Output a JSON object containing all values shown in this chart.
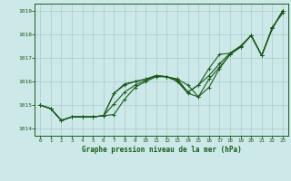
{
  "xlabel": "Graphe pression niveau de la mer (hPa)",
  "bg_color": "#cce8e8",
  "line_color": "#1a5c1a",
  "grid_color": "#aacccc",
  "ylim": [
    1013.7,
    1019.3
  ],
  "xlim": [
    -0.5,
    23.5
  ],
  "yticks": [
    1014,
    1015,
    1016,
    1017,
    1018,
    1019
  ],
  "xticks": [
    0,
    1,
    2,
    3,
    4,
    5,
    6,
    7,
    8,
    9,
    10,
    11,
    12,
    13,
    14,
    15,
    16,
    17,
    18,
    19,
    20,
    21,
    22,
    23
  ],
  "line1": [
    1015.0,
    1014.85,
    1014.35,
    1014.5,
    1014.5,
    1014.5,
    1014.55,
    1014.6,
    1015.25,
    1015.75,
    1016.0,
    1016.2,
    1016.2,
    1016.1,
    1015.85,
    1015.35,
    1015.75,
    1016.55,
    1017.15,
    1017.45,
    1017.95,
    1017.1,
    1018.3,
    1018.9
  ],
  "line2": [
    1015.0,
    1014.85,
    1014.35,
    1014.5,
    1014.5,
    1014.5,
    1014.55,
    1015.05,
    1015.55,
    1015.85,
    1016.05,
    1016.25,
    1016.2,
    1016.1,
    1015.55,
    1015.85,
    1016.25,
    1016.75,
    1017.2,
    1017.5,
    1017.95,
    1017.1,
    1018.25,
    1019.0
  ],
  "line3": [
    1015.0,
    1014.85,
    1014.35,
    1014.5,
    1014.5,
    1014.5,
    1014.55,
    1015.5,
    1015.85,
    1016.0,
    1016.1,
    1016.25,
    1016.2,
    1016.05,
    1015.55,
    1015.85,
    1016.55,
    1017.15,
    1017.2,
    1017.5,
    1017.95,
    1017.1,
    1018.25,
    1019.0
  ],
  "line4": [
    1015.0,
    1014.85,
    1014.35,
    1014.5,
    1014.5,
    1014.5,
    1014.55,
    1015.5,
    1015.9,
    1016.0,
    1016.1,
    1016.25,
    1016.2,
    1016.0,
    1015.5,
    1015.35,
    1016.1,
    1016.6,
    1017.15,
    1017.5,
    1017.95,
    1017.1,
    1018.25,
    1019.0
  ]
}
